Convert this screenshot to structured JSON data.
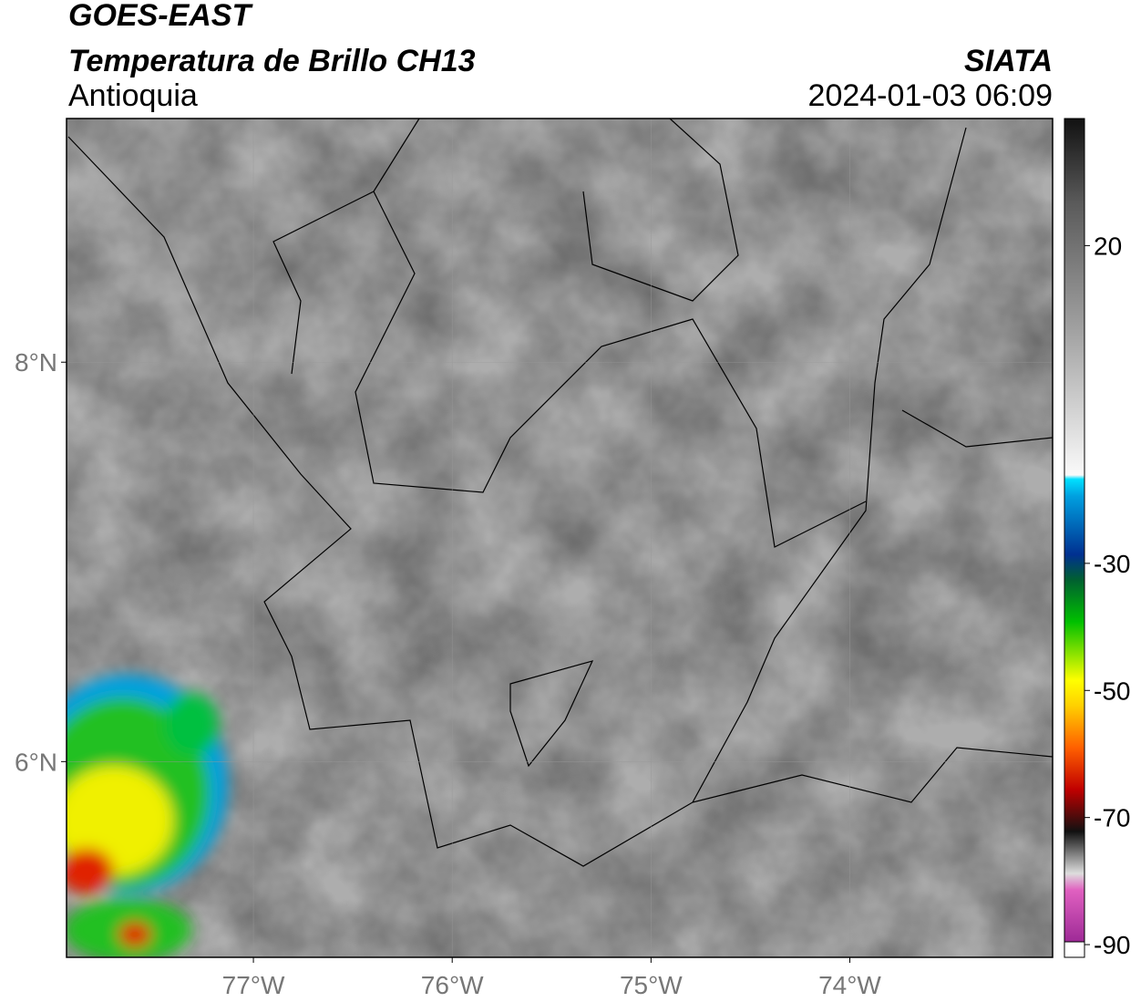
{
  "header": {
    "title": "GOES-EAST",
    "subtitle": "Temperatura de Brillo CH13",
    "region": "Antioquia",
    "source": "SIATA",
    "datetime": "2024-01-03 06:09"
  },
  "map": {
    "xlim": [
      -77.94,
      -72.98
    ],
    "ylim": [
      5.02,
      9.22
    ],
    "xticks": [
      {
        "value": -77,
        "label": "77°W"
      },
      {
        "value": -76,
        "label": "76°W"
      },
      {
        "value": -75,
        "label": "75°W"
      },
      {
        "value": -74,
        "label": "74°W"
      }
    ],
    "yticks": [
      {
        "value": 8,
        "label": "8°N"
      },
      {
        "value": 6,
        "label": "6°N"
      }
    ]
  },
  "colorbar": {
    "lim": [
      -92,
      40
    ],
    "ticks": [
      20,
      -30,
      -50,
      -70,
      -90
    ]
  }
}
